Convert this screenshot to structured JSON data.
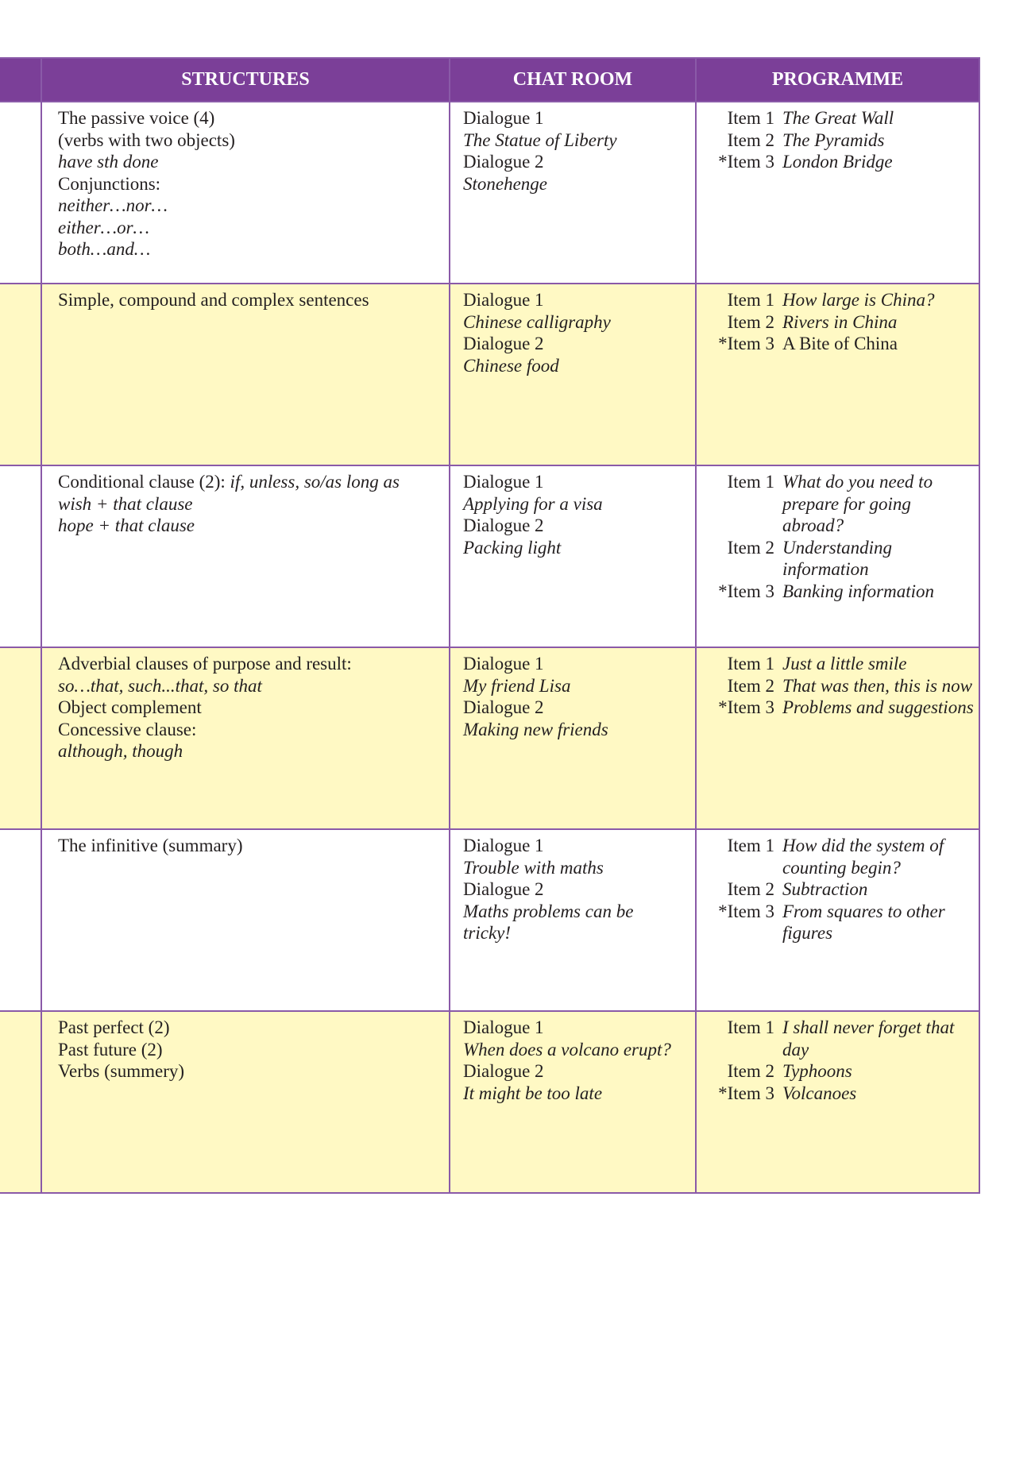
{
  "headers": {
    "structures": "STRUCTURES",
    "chat_room": "CHAT ROOM",
    "programme": "PROGRAMME"
  },
  "colors": {
    "header": "#7b3f98",
    "band": "#fff9c4",
    "border": "#8a5aa8"
  },
  "rows": [
    {
      "structures": [
        {
          "t": "The passive voice (4)",
          "i": false
        },
        {
          "t": "(verbs with two objects)",
          "i": false
        },
        {
          "t": "have sth done",
          "i": true
        },
        {
          "t": "Conjunctions:",
          "i": false
        },
        {
          "t": "neither…nor…",
          "i": true
        },
        {
          "t": "either…or…",
          "i": true
        },
        {
          "t": "both…and…",
          "i": true
        }
      ],
      "chat": [
        "Dialogue 1",
        "The Statue of Liberty",
        "Dialogue 2",
        "Stonehenge"
      ],
      "programme": [
        {
          "label": "Item 1",
          "text": "The Great Wall"
        },
        {
          "label": "Item 2",
          "text": "The Pyramids"
        },
        {
          "label": "*Item 3",
          "text": "London Bridge"
        }
      ]
    },
    {
      "structures": [
        {
          "t": "Simple, compound and complex sentences",
          "i": false
        }
      ],
      "chat": [
        "Dialogue 1",
        "Chinese calligraphy",
        "Dialogue 2",
        "Chinese food"
      ],
      "programme": [
        {
          "label": "Item 1",
          "text": "How large is China?"
        },
        {
          "label": "Item 2",
          "text": "Rivers in China"
        },
        {
          "label": "*Item 3",
          "text": "A Bite of China",
          "plain": true
        }
      ]
    },
    {
      "structures": [
        {
          "t": "Conditional clause (2): ",
          "i": false,
          "rest": "if, unless, so/as long as"
        },
        {
          "t": "wish + that clause",
          "i": true
        },
        {
          "t": "hope + that clause",
          "i": true
        }
      ],
      "chat": [
        "Dialogue 1",
        "Applying for a visa",
        "Dialogue 2",
        "Packing light"
      ],
      "programme": [
        {
          "label": "Item 1",
          "text": "What do you need to prepare for going abroad?"
        },
        {
          "label": "Item 2",
          "text": "Understanding information"
        },
        {
          "label": "*Item 3",
          "text": "Banking information"
        }
      ]
    },
    {
      "structures": [
        {
          "t": "Adverbial clauses of purpose and result:",
          "i": false
        },
        {
          "t": "so…that, such...that, so that",
          "i": true
        },
        {
          "t": "Object complement",
          "i": false
        },
        {
          "t": "Concessive clause:",
          "i": false
        },
        {
          "t": "although, though",
          "i": true
        }
      ],
      "chat": [
        "Dialogue 1",
        "My friend Lisa",
        "Dialogue 2",
        "Making new friends"
      ],
      "programme": [
        {
          "label": "Item 1",
          "text": "Just a little smile"
        },
        {
          "label": "Item 2",
          "text": "That was then, this is now"
        },
        {
          "label": "*Item 3",
          "text": "Problems and suggestions"
        }
      ]
    },
    {
      "structures": [
        {
          "t": "The infinitive (summary)",
          "i": false
        }
      ],
      "chat": [
        "Dialogue 1",
        "Trouble with maths",
        "Dialogue 2",
        "Maths problems can be tricky!"
      ],
      "programme": [
        {
          "label": "Item 1",
          "text": "How did the system of counting begin?"
        },
        {
          "label": "Item 2",
          "text": "Subtraction"
        },
        {
          "label": "*Item 3",
          "text": "From squares to other figures"
        }
      ]
    },
    {
      "structures": [
        {
          "t": "Past perfect (2)",
          "i": false
        },
        {
          "t": "Past future (2)",
          "i": false
        },
        {
          "t": "Verbs (summery)",
          "i": false
        }
      ],
      "chat": [
        "Dialogue 1",
        "When does a volcano erupt?",
        "Dialogue 2",
        "It might be too late"
      ],
      "programme": [
        {
          "label": "Item 1",
          "text": "I shall never forget that day"
        },
        {
          "label": "Item 2",
          "text": "Typhoons"
        },
        {
          "label": "*Item 3",
          "text": "Volcanoes"
        }
      ]
    }
  ]
}
